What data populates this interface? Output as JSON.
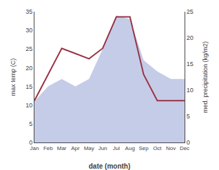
{
  "chart_data": {
    "type": "area",
    "categories": [
      "Jan",
      "Feb",
      "Mar",
      "Apr",
      "May",
      "Jun",
      "Jul",
      "Aug",
      "Sep",
      "Oct",
      "Nov",
      "Dec"
    ],
    "series": [
      {
        "type": "area",
        "color": "#c5cce8",
        "values": [
          11,
          15,
          17,
          15,
          17,
          25,
          34,
          33,
          22,
          19,
          17,
          17
        ]
      },
      {
        "type": "line",
        "color": "#993344",
        "axis": "y2",
        "values": [
          8,
          13,
          18,
          17,
          16,
          18,
          24,
          24,
          13,
          8,
          8,
          8
        ]
      }
    ],
    "xlabel": "date (month)",
    "ylabel": "max temp (C)",
    "y2label": "med. precipitation (kg/m2)",
    "ylim": [
      0,
      35
    ],
    "yticks": [
      0,
      5,
      10,
      15,
      20,
      25,
      30,
      35
    ],
    "y2lim": [
      0,
      25
    ],
    "y2ticks": [
      0,
      5,
      10,
      15,
      20,
      25
    ],
    "grid": false
  }
}
